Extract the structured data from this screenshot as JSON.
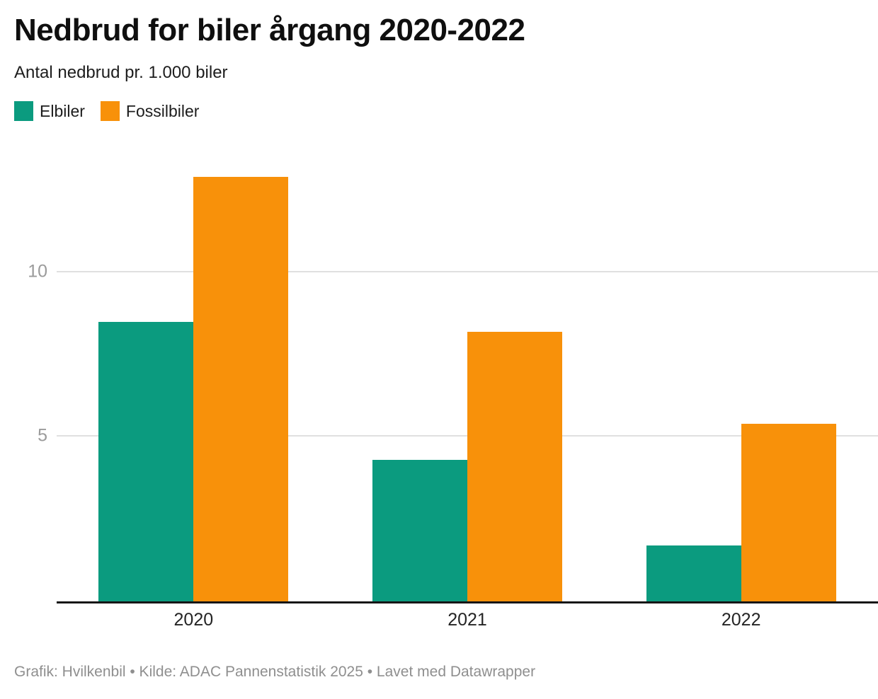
{
  "header": {
    "title": "Nedbrud for biler årgang 2020-2022",
    "subtitle": "Antal nedbrud pr. 1.000 biler"
  },
  "legend": {
    "items": [
      {
        "label": "Elbiler",
        "color": "#0b9b7f"
      },
      {
        "label": "Fossilbiler",
        "color": "#f8910a"
      }
    ]
  },
  "chart_data": {
    "type": "bar",
    "title": "Nedbrud for biler årgang 2020-2022",
    "subtitle": "Antal nedbrud pr. 1.000 biler",
    "ylabel": "Antal nedbrud pr. 1.000 biler",
    "categories": [
      "2020",
      "2021",
      "2022"
    ],
    "series": [
      {
        "name": "Elbiler",
        "color": "#0b9b7f",
        "values": [
          8.5,
          4.3,
          1.7
        ]
      },
      {
        "name": "Fossilbiler",
        "color": "#f8910a",
        "values": [
          12.9,
          8.2,
          5.4
        ]
      }
    ],
    "yticks": [
      5,
      10
    ],
    "ylim": [
      0,
      14.1
    ],
    "grid": true,
    "legend_position": "top-left"
  },
  "footer": {
    "text": "Grafik: Hvilkenbil • Kilde: ADAC Pannenstatistik 2025 • Lavet med Datawrapper"
  },
  "colors": {
    "elbiler": "#0b9b7f",
    "fossilbiler": "#f8910a",
    "gridline": "#e0e0e0",
    "axis_line": "#161616",
    "tick_text": "#9b9b9b",
    "x_label_text": "#242424",
    "footer_text": "#8f8f8f"
  }
}
